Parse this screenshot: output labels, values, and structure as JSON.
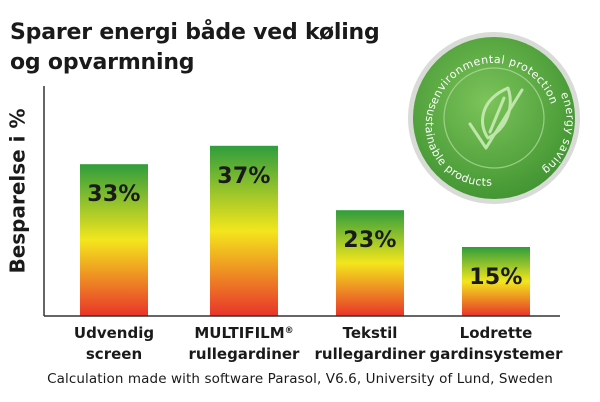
{
  "title_line1": "Sparer energi både ved køling",
  "title_line2": "og opvarmning",
  "footnote": "Calculation made with software Parasol, V6.6, University of Lund, Sweden",
  "seal": {
    "text_top": "environmental protection",
    "text_right": "energy saving",
    "text_left": "sustainable products",
    "icon": "leaf-check-icon",
    "color": "#5dab3c"
  },
  "colors": {
    "bar_top_green": "#2f9d3c",
    "bar_mid_yellow": "#f3e61c",
    "bar_bottom_red": "#e8342a"
  },
  "chart_data": {
    "type": "bar",
    "title": "Sparer energi både ved køling og opvarmning",
    "ylabel": "Besparelse i %",
    "xlabel": "",
    "ylim": [
      0,
      50
    ],
    "grid": false,
    "categories": [
      {
        "line1": "Udvendig",
        "line2": "screen",
        "sup": ""
      },
      {
        "line1": "MULTIFILM",
        "line2": "rullegardiner",
        "sup": "®"
      },
      {
        "line1": "Tekstil",
        "line2": "rullegardiner",
        "sup": ""
      },
      {
        "line1": "Lodrette",
        "line2": "gardinsystemer",
        "sup": ""
      }
    ],
    "values": [
      33,
      37,
      23,
      15
    ],
    "labels": [
      "33%",
      "37%",
      "23%",
      "15%"
    ]
  }
}
